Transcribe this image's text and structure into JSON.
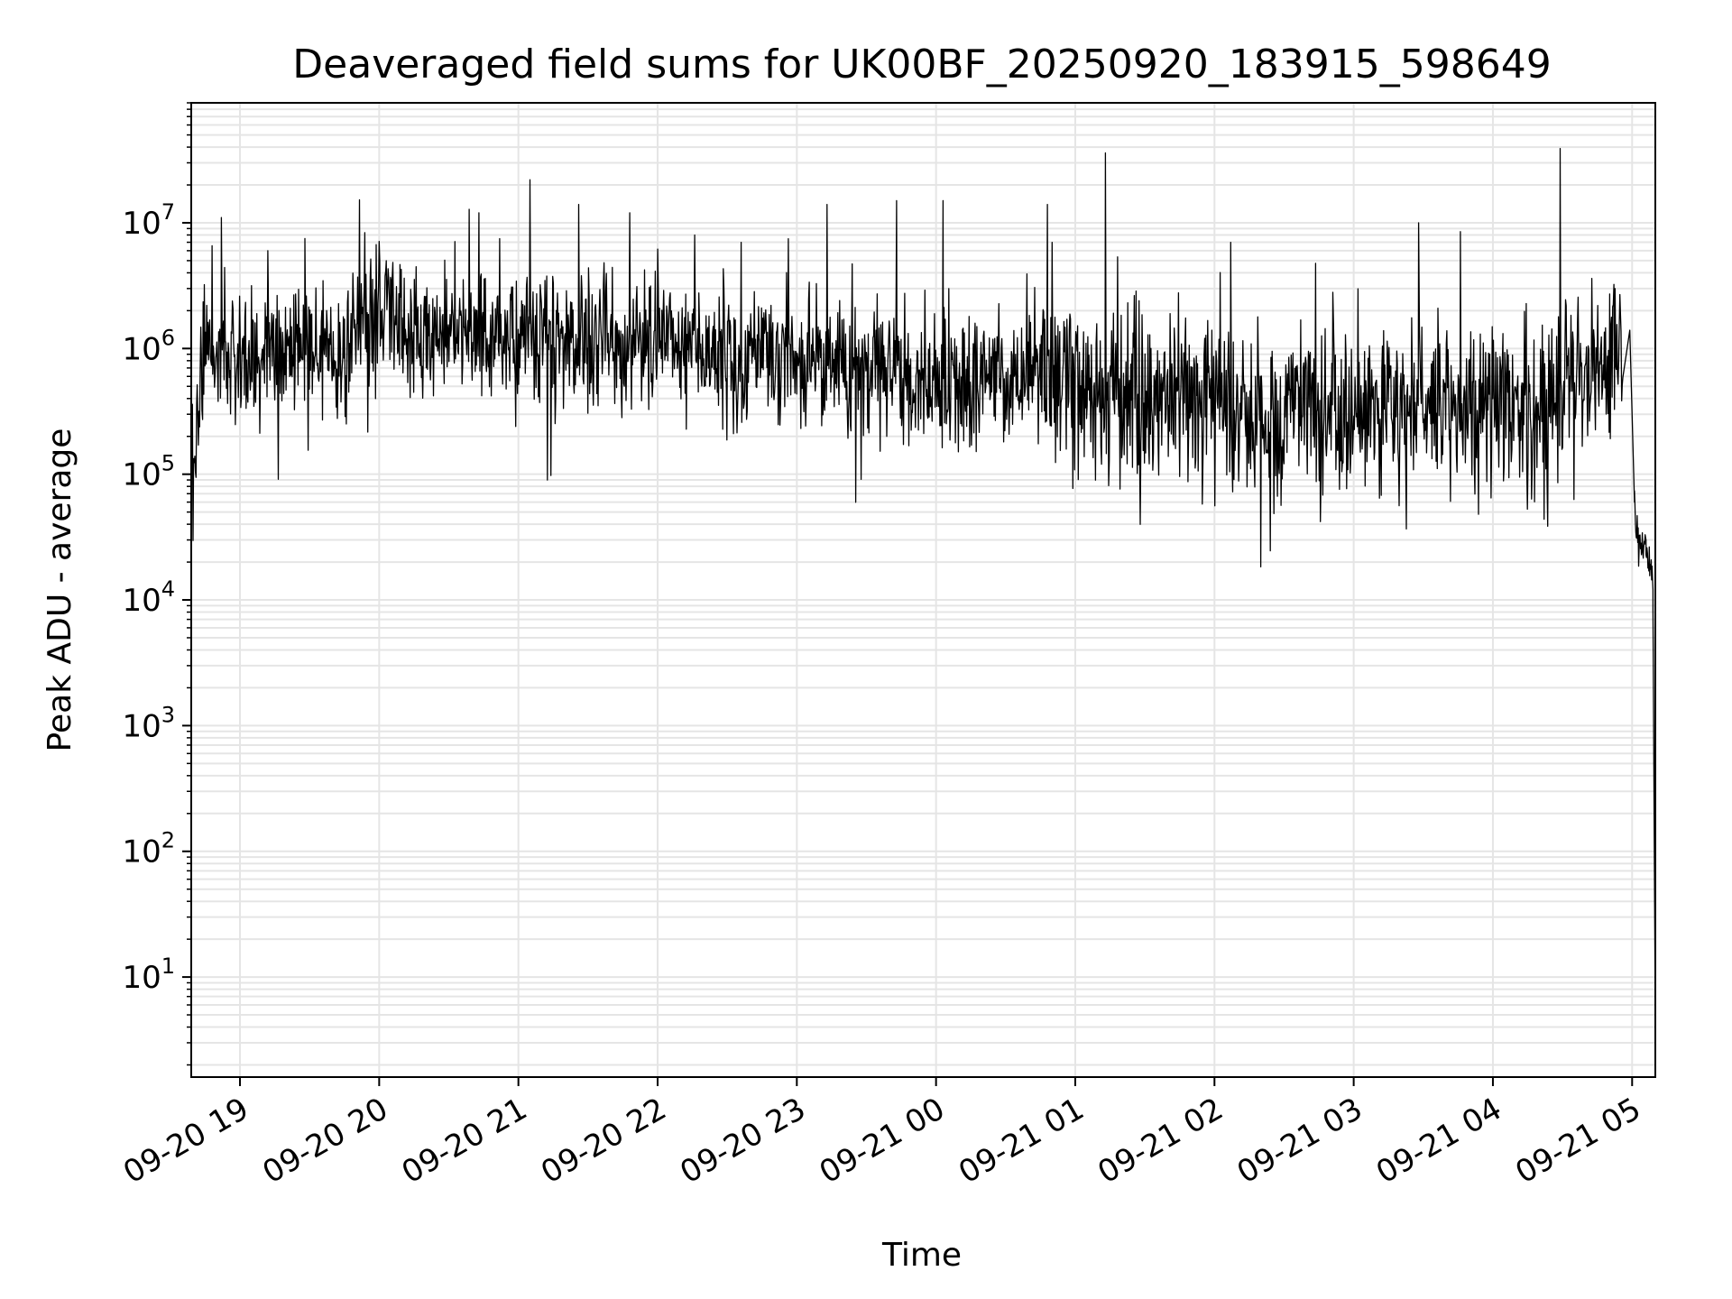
{
  "chart_data": {
    "type": "line",
    "title": "Deaveraged field sums for UK00BF_20250920_183915_598649",
    "xlabel": "Time",
    "ylabel": "Peak ADU - average",
    "yscale": "log",
    "ylim": [
      1.6,
      90000000
    ],
    "xlim": [
      "2025-09-20 18:39",
      "2025-09-21 05:10"
    ],
    "grid": true,
    "line_color": "#000000",
    "grid_color": "#e5e5e5",
    "x_ticks": [
      {
        "t": "2025-09-20 19:00",
        "label": "09-20 19"
      },
      {
        "t": "2025-09-20 20:00",
        "label": "09-20 20"
      },
      {
        "t": "2025-09-20 21:00",
        "label": "09-20 21"
      },
      {
        "t": "2025-09-20 22:00",
        "label": "09-20 22"
      },
      {
        "t": "2025-09-20 23:00",
        "label": "09-20 23"
      },
      {
        "t": "2025-09-21 00:00",
        "label": "09-21 00"
      },
      {
        "t": "2025-09-21 01:00",
        "label": "09-21 01"
      },
      {
        "t": "2025-09-21 02:00",
        "label": "09-21 02"
      },
      {
        "t": "2025-09-21 03:00",
        "label": "09-21 03"
      },
      {
        "t": "2025-09-21 04:00",
        "label": "09-21 04"
      },
      {
        "t": "2025-09-21 05:00",
        "label": "09-21 05"
      }
    ],
    "y_ticks": [
      {
        "value": 10,
        "base": "10",
        "exp": "1"
      },
      {
        "value": 100,
        "base": "10",
        "exp": "2"
      },
      {
        "value": 1000,
        "base": "10",
        "exp": "3"
      },
      {
        "value": 10000,
        "base": "10",
        "exp": "4"
      },
      {
        "value": 100000,
        "base": "10",
        "exp": "5"
      },
      {
        "value": 1000000,
        "base": "10",
        "exp": "6"
      },
      {
        "value": 10000000,
        "base": "10",
        "exp": "7"
      }
    ],
    "series": [
      {
        "x": [
          "2025-09-20 18:39",
          "2025-09-20 18:45",
          "2025-09-20 19:00",
          "2025-09-20 19:15",
          "2025-09-20 19:30",
          "2025-09-20 19:45",
          "2025-09-20 20:00",
          "2025-09-20 20:15",
          "2025-09-20 20:30",
          "2025-09-20 20:45",
          "2025-09-20 21:00",
          "2025-09-20 21:15",
          "2025-09-20 21:30",
          "2025-09-20 21:45",
          "2025-09-20 22:00",
          "2025-09-20 22:15",
          "2025-09-20 22:30",
          "2025-09-20 22:45",
          "2025-09-20 23:00",
          "2025-09-20 23:15",
          "2025-09-20 23:30",
          "2025-09-20 23:45",
          "2025-09-21 00:00",
          "2025-09-21 00:15",
          "2025-09-21 00:30",
          "2025-09-21 00:45",
          "2025-09-21 01:00",
          "2025-09-21 01:15",
          "2025-09-21 01:30",
          "2025-09-21 01:45",
          "2025-09-21 02:00",
          "2025-09-21 02:15",
          "2025-09-21 02:30",
          "2025-09-21 02:45",
          "2025-09-21 03:00",
          "2025-09-21 03:15",
          "2025-09-21 03:30",
          "2025-09-21 03:45",
          "2025-09-21 04:00",
          "2025-09-21 04:15",
          "2025-09-21 04:30",
          "2025-09-21 04:45",
          "2025-09-21 04:59",
          "2025-09-21 05:01",
          "2025-09-21 05:03",
          "2025-09-21 05:06",
          "2025-09-21 05:09",
          "2025-09-21 05:10"
        ],
        "y": [
          110000,
          900000,
          1000000,
          900000,
          950000,
          1000000,
          1800000,
          1300000,
          1400000,
          1400000,
          1200000,
          1100000,
          1200000,
          900000,
          1300000,
          1000000,
          800000,
          800000,
          750000,
          800000,
          700000,
          650000,
          600000,
          500000,
          550000,
          700000,
          500000,
          420000,
          380000,
          330000,
          320000,
          300000,
          300000,
          320000,
          300000,
          330000,
          330000,
          340000,
          350000,
          340000,
          400000,
          550000,
          1400000,
          60000,
          25000,
          30000,
          12000,
          4
        ]
      }
    ],
    "spikes": [
      {
        "t": "2025-09-20 18:52",
        "y": 11000000
      },
      {
        "t": "2025-09-20 19:12",
        "y": 6000000
      },
      {
        "t": "2025-09-20 19:28",
        "y": 7500000
      },
      {
        "t": "2025-09-20 20:43",
        "y": 12000000
      },
      {
        "t": "2025-09-20 21:05",
        "y": 22000000
      },
      {
        "t": "2025-09-20 21:26",
        "y": 14000000
      },
      {
        "t": "2025-09-20 21:48",
        "y": 12000000
      },
      {
        "t": "2025-09-20 22:16",
        "y": 8000000
      },
      {
        "t": "2025-09-20 22:36",
        "y": 7000000
      },
      {
        "t": "2025-09-20 23:13",
        "y": 14000000
      },
      {
        "t": "2025-09-20 23:43",
        "y": 15000000
      },
      {
        "t": "2025-09-21 00:03",
        "y": 15000000
      },
      {
        "t": "2025-09-21 00:48",
        "y": 14000000
      },
      {
        "t": "2025-09-21 00:50",
        "y": 7000000
      },
      {
        "t": "2025-09-21 01:13",
        "y": 36000000
      },
      {
        "t": "2025-09-21 02:07",
        "y": 7000000
      },
      {
        "t": "2025-09-21 02:51",
        "y": 2800000
      },
      {
        "t": "2025-09-21 03:28",
        "y": 10000000
      },
      {
        "t": "2025-09-21 03:46",
        "y": 8500000
      },
      {
        "t": "2025-09-21 04:29",
        "y": 39000000
      }
    ]
  }
}
